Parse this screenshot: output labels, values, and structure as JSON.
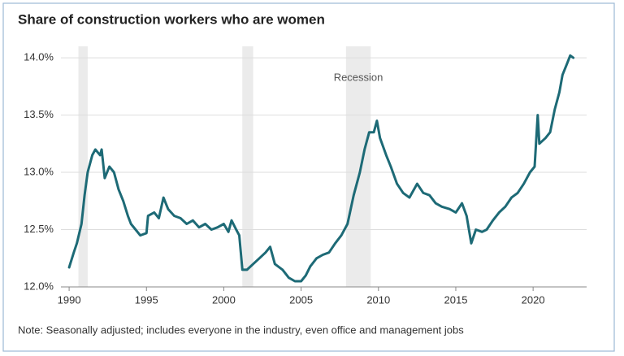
{
  "chart_data": {
    "type": "line",
    "title": "Share of construction workers who are women",
    "note": "Note: Seasonally adjusted; includes everyone in the industry, even office and management jobs",
    "annotation": "Recession",
    "recessions": [
      [
        1990.6,
        1991.2
      ],
      [
        2001.2,
        2001.9
      ],
      [
        2007.9,
        2009.5
      ]
    ],
    "xlim": [
      1989.47,
      2023.46
    ],
    "xticks": [
      1990,
      1995,
      2000,
      2005,
      2010,
      2015,
      2020
    ],
    "ylim": [
      12.0,
      14.1
    ],
    "yticks": [
      {
        "value": 12.0,
        "label": "12.0%"
      },
      {
        "value": 12.5,
        "label": "12.5%"
      },
      {
        "value": 13.0,
        "label": "13.0%"
      },
      {
        "value": 13.5,
        "label": "13.5%"
      },
      {
        "value": 14.0,
        "label": "14.0%"
      }
    ],
    "grid": true,
    "color": "#1d6a76",
    "x": [
      1990.0,
      1990.3,
      1990.5,
      1990.8,
      1991.0,
      1991.2,
      1991.5,
      1991.7,
      1992.0,
      1992.1,
      1992.3,
      1992.6,
      1992.9,
      1993.2,
      1993.5,
      1993.8,
      1994.0,
      1994.3,
      1994.6,
      1995.0,
      1995.1,
      1995.5,
      1995.8,
      1996.1,
      1996.4,
      1996.8,
      1997.2,
      1997.6,
      1998.0,
      1998.4,
      1998.8,
      1999.2,
      1999.6,
      2000.0,
      2000.3,
      2000.5,
      2000.8,
      2001.0,
      2001.2,
      2001.5,
      2001.9,
      2002.3,
      2002.7,
      2003.0,
      2003.3,
      2003.8,
      2004.2,
      2004.6,
      2005.0,
      2005.3,
      2005.6,
      2006.0,
      2006.4,
      2006.8,
      2007.2,
      2007.6,
      2008.0,
      2008.4,
      2008.8,
      2009.1,
      2009.4,
      2009.7,
      2009.9,
      2010.1,
      2010.5,
      2010.8,
      2011.2,
      2011.6,
      2012.0,
      2012.5,
      2012.9,
      2013.3,
      2013.7,
      2014.1,
      2014.6,
      2015.0,
      2015.4,
      2015.7,
      2016.0,
      2016.3,
      2016.7,
      2017.0,
      2017.4,
      2017.8,
      2018.2,
      2018.6,
      2019.0,
      2019.4,
      2019.8,
      2020.1,
      2020.3,
      2020.4,
      2020.8,
      2021.1,
      2021.4,
      2021.7,
      2021.9,
      2022.2,
      2022.4,
      2022.6
    ],
    "values": [
      12.17,
      12.3,
      12.38,
      12.55,
      12.8,
      13.0,
      13.15,
      13.2,
      13.15,
      13.2,
      12.95,
      13.05,
      13.0,
      12.85,
      12.75,
      12.62,
      12.55,
      12.5,
      12.45,
      12.47,
      12.62,
      12.65,
      12.6,
      12.78,
      12.68,
      12.62,
      12.6,
      12.55,
      12.58,
      12.52,
      12.55,
      12.5,
      12.52,
      12.55,
      12.48,
      12.58,
      12.5,
      12.45,
      12.15,
      12.15,
      12.2,
      12.25,
      12.3,
      12.35,
      12.2,
      12.15,
      12.08,
      12.05,
      12.05,
      12.1,
      12.18,
      12.25,
      12.28,
      12.3,
      12.38,
      12.45,
      12.55,
      12.8,
      13.0,
      13.2,
      13.35,
      13.35,
      13.45,
      13.3,
      13.15,
      13.05,
      12.9,
      12.82,
      12.78,
      12.9,
      12.82,
      12.8,
      12.73,
      12.7,
      12.68,
      12.65,
      12.73,
      12.62,
      12.38,
      12.5,
      12.48,
      12.5,
      12.58,
      12.65,
      12.7,
      12.78,
      12.82,
      12.9,
      13.0,
      13.05,
      13.5,
      13.25,
      13.3,
      13.35,
      13.55,
      13.7,
      13.85,
      13.95,
      14.02,
      14.0
    ]
  }
}
